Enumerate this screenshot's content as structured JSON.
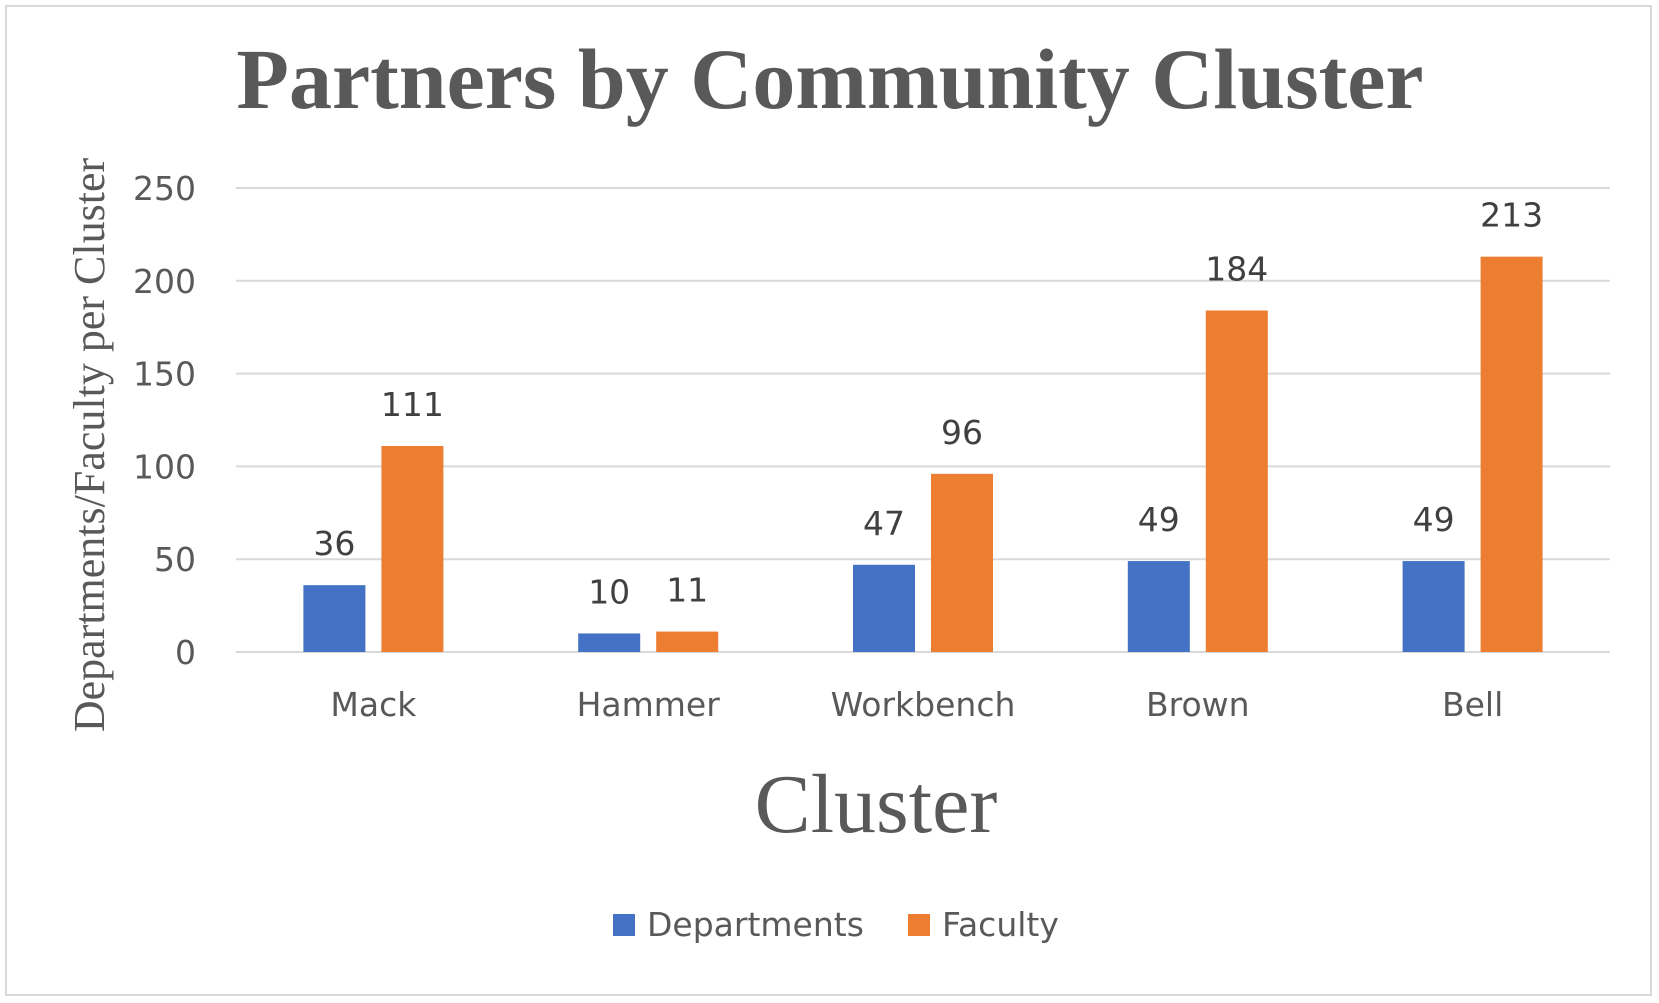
{
  "chart_data": {
    "type": "bar",
    "title": "Partners by Community Cluster",
    "xlabel": "Cluster",
    "ylabel": "Departments/Faculty per Cluster",
    "categories": [
      "Mack",
      "Hammer",
      "Workbench",
      "Brown",
      "Bell"
    ],
    "series": [
      {
        "name": "Departments",
        "color": "#4472C4",
        "values": [
          36,
          10,
          47,
          49,
          49
        ]
      },
      {
        "name": "Faculty",
        "color": "#ED7D31",
        "values": [
          111,
          11,
          96,
          184,
          213
        ]
      }
    ],
    "ylim": [
      0,
      250
    ],
    "yticks": [
      0,
      50,
      100,
      150,
      200,
      250
    ],
    "grid": true,
    "legend": "bottom",
    "data_labels": true
  }
}
